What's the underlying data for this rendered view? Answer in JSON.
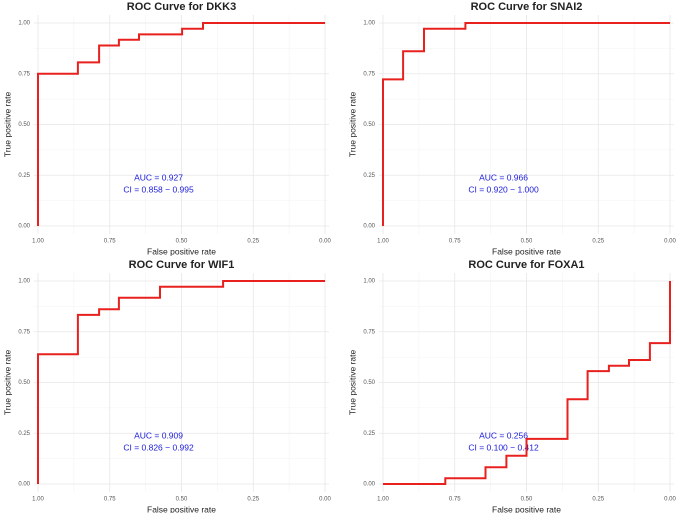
{
  "chart_data": [
    {
      "type": "line",
      "title": "ROC Curve for DKK3",
      "xlabel": "False positive rate",
      "ylabel": "True positive rate",
      "annotations": [
        "AUC = 0.927",
        "CI = 0.858 − 0.995"
      ],
      "x": [
        1,
        1,
        0.861,
        0.861,
        0.787,
        0.787,
        0.718,
        0.718,
        0.648,
        0.648,
        0.498,
        0.498,
        0.425,
        0.425,
        0
      ],
      "values": [
        0,
        0.75,
        0.75,
        0.806,
        0.806,
        0.889,
        0.889,
        0.917,
        0.917,
        0.944,
        0.944,
        0.972,
        0.972,
        1,
        1
      ],
      "color": "#e8201e",
      "xlim": [
        1,
        0
      ],
      "ylim": [
        0,
        1
      ],
      "xticks": [
        {
          "value": 1,
          "label": "1.00"
        },
        {
          "value": 0.75,
          "label": "0.75"
        },
        {
          "value": 0.5,
          "label": "0.50"
        },
        {
          "value": 0.25,
          "label": "0.25"
        },
        {
          "value": 0,
          "label": "0.00"
        }
      ],
      "yticks": [
        {
          "value": 0,
          "label": "0.00"
        },
        {
          "value": 0.25,
          "label": "0.25"
        },
        {
          "value": 0.5,
          "label": "0.50"
        },
        {
          "value": 0.75,
          "label": "0.75"
        },
        {
          "value": 1,
          "label": "1.00"
        }
      ],
      "grid": true
    },
    {
      "type": "line",
      "title": "ROC Curve for SNAI2",
      "xlabel": "False positive rate",
      "ylabel": "True positive rate",
      "annotations": [
        "AUC = 0.966",
        "CI = 0.920 − 1.000"
      ],
      "x": [
        1,
        1,
        0.93,
        0.93,
        0.857,
        0.857,
        0.713,
        0.713,
        0
      ],
      "values": [
        0,
        0.722,
        0.722,
        0.861,
        0.861,
        0.972,
        0.972,
        1,
        1
      ],
      "color": "#e8201e",
      "xlim": [
        1,
        0
      ],
      "ylim": [
        0,
        1
      ],
      "xticks": [
        {
          "value": 1,
          "label": "1.00"
        },
        {
          "value": 0.75,
          "label": "0.75"
        },
        {
          "value": 0.5,
          "label": "0.50"
        },
        {
          "value": 0.25,
          "label": "0.25"
        },
        {
          "value": 0,
          "label": "0.00"
        }
      ],
      "yticks": [
        {
          "value": 0,
          "label": "0.00"
        },
        {
          "value": 0.25,
          "label": "0.25"
        },
        {
          "value": 0.5,
          "label": "0.50"
        },
        {
          "value": 0.75,
          "label": "0.75"
        },
        {
          "value": 1,
          "label": "1.00"
        }
      ],
      "grid": true
    },
    {
      "type": "line",
      "title": "ROC Curve for WIF1",
      "xlabel": "False positive rate",
      "ylabel": "True positive rate",
      "annotations": [
        "AUC = 0.909",
        "CI = 0.826 − 0.992"
      ],
      "x": [
        1,
        1,
        0.861,
        0.861,
        0.787,
        0.787,
        0.718,
        0.718,
        0.575,
        0.575,
        0.355,
        0.355,
        0
      ],
      "values": [
        0,
        0.639,
        0.639,
        0.833,
        0.833,
        0.861,
        0.861,
        0.917,
        0.917,
        0.972,
        0.972,
        1,
        1
      ],
      "color": "#e8201e",
      "xlim": [
        1,
        0
      ],
      "ylim": [
        0,
        1
      ],
      "xticks": [
        {
          "value": 1,
          "label": "1.00"
        },
        {
          "value": 0.75,
          "label": "0.75"
        },
        {
          "value": 0.5,
          "label": "0.50"
        },
        {
          "value": 0.25,
          "label": "0.25"
        },
        {
          "value": 0,
          "label": "0.00"
        }
      ],
      "yticks": [
        {
          "value": 0,
          "label": "0.00"
        },
        {
          "value": 0.25,
          "label": "0.25"
        },
        {
          "value": 0.5,
          "label": "0.50"
        },
        {
          "value": 0.75,
          "label": "0.75"
        },
        {
          "value": 1,
          "label": "1.00"
        }
      ],
      "grid": true
    },
    {
      "type": "line",
      "title": "ROC Curve for FOXA1",
      "xlabel": "False positive rate",
      "ylabel": "True positive rate",
      "annotations": [
        "AUC = 0.256",
        "CI = 0.100 − 0.412"
      ],
      "x": [
        1,
        0.783,
        0.783,
        0.643,
        0.643,
        0.57,
        0.57,
        0.5,
        0.5,
        0.357,
        0.357,
        0.287,
        0.287,
        0.213,
        0.213,
        0.143,
        0.143,
        0.07,
        0.07,
        0,
        0
      ],
      "values": [
        0,
        0,
        0.028,
        0.028,
        0.083,
        0.083,
        0.139,
        0.139,
        0.222,
        0.222,
        0.417,
        0.417,
        0.556,
        0.556,
        0.583,
        0.583,
        0.611,
        0.611,
        0.694,
        0.694,
        1
      ],
      "color": "#e8201e",
      "xlim": [
        1,
        0
      ],
      "ylim": [
        0,
        1
      ],
      "xticks": [
        {
          "value": 1,
          "label": "1.00"
        },
        {
          "value": 0.75,
          "label": "0.75"
        },
        {
          "value": 0.5,
          "label": "0.50"
        },
        {
          "value": 0.25,
          "label": "0.25"
        },
        {
          "value": 0,
          "label": "0.00"
        }
      ],
      "yticks": [
        {
          "value": 0,
          "label": "0.00"
        },
        {
          "value": 0.25,
          "label": "0.25"
        },
        {
          "value": 0.5,
          "label": "0.50"
        },
        {
          "value": 0.75,
          "label": "0.75"
        },
        {
          "value": 1,
          "label": "1.00"
        }
      ],
      "grid": true
    }
  ]
}
